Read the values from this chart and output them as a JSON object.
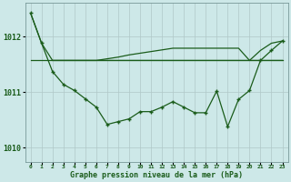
{
  "bg_color": "#cde8e8",
  "grid_color": "#b0c8c8",
  "line_color": "#1a5c1a",
  "title": "Graphe pression niveau de la mer (hPa)",
  "yticks": [
    1010,
    1011,
    1012
  ],
  "ylim": [
    1009.75,
    1012.6
  ],
  "xlim": [
    -0.5,
    23.5
  ],
  "series1_x": [
    0,
    1,
    2,
    3,
    4,
    5,
    6,
    7,
    8,
    9,
    10,
    11,
    12,
    13,
    14,
    15,
    16,
    17,
    18,
    19,
    20,
    21,
    22,
    23
  ],
  "series1": [
    1012.42,
    1011.88,
    1011.57,
    1011.57,
    1011.57,
    1011.57,
    1011.57,
    1011.57,
    1011.57,
    1011.57,
    1011.57,
    1011.57,
    1011.57,
    1011.57,
    1011.57,
    1011.57,
    1011.57,
    1011.57,
    1011.57,
    1011.57,
    1011.57,
    1011.57,
    1011.57,
    1011.57
  ],
  "series2_x": [
    0,
    1,
    2,
    3,
    4,
    5,
    6,
    7,
    8,
    9,
    10,
    11,
    12,
    13,
    14,
    15,
    16,
    17,
    18,
    19,
    20,
    21,
    22,
    23
  ],
  "series2": [
    1011.57,
    1011.57,
    1011.57,
    1011.57,
    1011.57,
    1011.57,
    1011.57,
    1011.57,
    1011.57,
    1011.57,
    1011.57,
    1011.57,
    1011.57,
    1011.57,
    1011.57,
    1011.57,
    1011.57,
    1011.57,
    1011.57,
    1011.57,
    1011.57,
    1011.57,
    1011.57,
    1011.57
  ],
  "series3_x": [
    2,
    3,
    4,
    5,
    6,
    7,
    8,
    9,
    10,
    11,
    12,
    13,
    14,
    15,
    16,
    17,
    18,
    19,
    20,
    21,
    22,
    23
  ],
  "series3": [
    1011.57,
    1011.57,
    1011.57,
    1011.57,
    1011.57,
    1011.6,
    1011.63,
    1011.67,
    1011.7,
    1011.73,
    1011.76,
    1011.79,
    1011.79,
    1011.79,
    1011.79,
    1011.79,
    1011.79,
    1011.79,
    1011.57,
    1011.75,
    1011.88,
    1011.92
  ],
  "series4_x": [
    0,
    1,
    2,
    3,
    4,
    5,
    6,
    7,
    8,
    9,
    10,
    11,
    12,
    13,
    14,
    15,
    16,
    17,
    18,
    19,
    20,
    21,
    22,
    23
  ],
  "series4": [
    1012.42,
    1011.88,
    1011.37,
    1011.14,
    1011.03,
    1010.88,
    1010.73,
    1010.42,
    1010.47,
    1010.52,
    1010.65,
    1010.65,
    1010.73,
    1010.83,
    1010.73,
    1010.63,
    1010.63,
    1011.02,
    1010.38,
    1010.87,
    1011.03,
    1011.57,
    1011.75,
    1011.92
  ]
}
